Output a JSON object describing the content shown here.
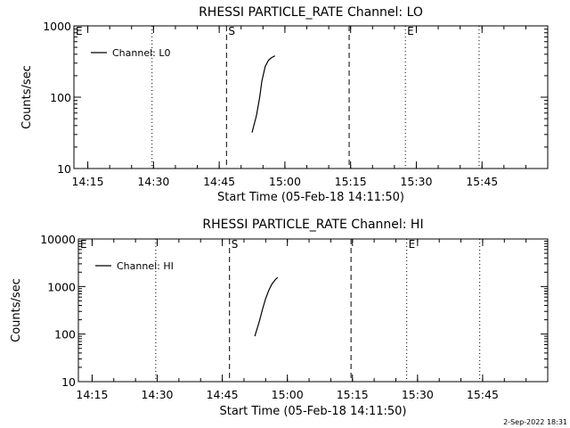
{
  "chart_data": [
    {
      "type": "line",
      "title": "RHESSI PARTICLE_RATE Channel: LO",
      "xlabel": "Start Time (05-Feb-18 14:11:50)",
      "ylabel": "Counts/sec",
      "yscale": "log",
      "ylim": [
        10,
        1000
      ],
      "yticks": [
        "10",
        "100",
        "1000"
      ],
      "xlim": [
        "14:11:50",
        "16:00:00"
      ],
      "xticks": [
        "14:15",
        "14:30",
        "14:45",
        "15:00",
        "15:15",
        "15:30",
        "15:45"
      ],
      "legend": {
        "entry": "Channel: L0",
        "placement": "top-left"
      },
      "series": [
        {
          "name": "Channel: L0",
          "x": [
            "14:52:30",
            "14:53:30",
            "14:54:15",
            "14:54:45",
            "14:55:30",
            "14:56:15",
            "14:57:00",
            "14:57:45"
          ],
          "y": [
            32,
            55,
            100,
            170,
            270,
            330,
            360,
            380
          ]
        }
      ],
      "markers": [
        {
          "label": "E",
          "time": "14:11:50",
          "style": "dotted"
        },
        {
          "label": "",
          "time": "14:29:40",
          "style": "dotted"
        },
        {
          "label": "S",
          "time": "14:46:40",
          "style": "dashed"
        },
        {
          "label": "",
          "time": "15:14:40",
          "style": "dashed"
        },
        {
          "label": "E",
          "time": "15:27:30",
          "style": "dotted"
        },
        {
          "label": "",
          "time": "15:44:20",
          "style": "dotted"
        }
      ]
    },
    {
      "type": "line",
      "title": "RHESSI PARTICLE_RATE Channel: HI",
      "xlabel": "Start Time (05-Feb-18 14:11:50)",
      "ylabel": "Counts/sec",
      "yscale": "log",
      "ylim": [
        10,
        10000
      ],
      "yticks": [
        "10",
        "100",
        "1000",
        "10000"
      ],
      "xlim": [
        "14:11:50",
        "16:00:00"
      ],
      "xticks": [
        "14:15",
        "14:30",
        "14:45",
        "15:00",
        "15:15",
        "15:30",
        "15:45"
      ],
      "legend": {
        "entry": "Channel: HI",
        "placement": "top-left"
      },
      "series": [
        {
          "name": "Channel: HI",
          "x": [
            "14:52:30",
            "14:53:30",
            "14:54:15",
            "14:55:00",
            "14:55:45",
            "14:56:30",
            "14:57:15",
            "14:57:45"
          ],
          "y": [
            90,
            180,
            330,
            560,
            850,
            1150,
            1400,
            1550
          ]
        }
      ],
      "markers": [
        {
          "label": "E",
          "time": "14:11:50",
          "style": "dotted"
        },
        {
          "label": "",
          "time": "14:29:40",
          "style": "dotted"
        },
        {
          "label": "S",
          "time": "14:46:40",
          "style": "dashed"
        },
        {
          "label": "",
          "time": "15:14:40",
          "style": "dashed"
        },
        {
          "label": "E",
          "time": "15:27:30",
          "style": "dotted"
        },
        {
          "label": "",
          "time": "15:44:20",
          "style": "dotted"
        }
      ]
    }
  ],
  "footer": {
    "date": "2-Sep-2022 18:31"
  }
}
